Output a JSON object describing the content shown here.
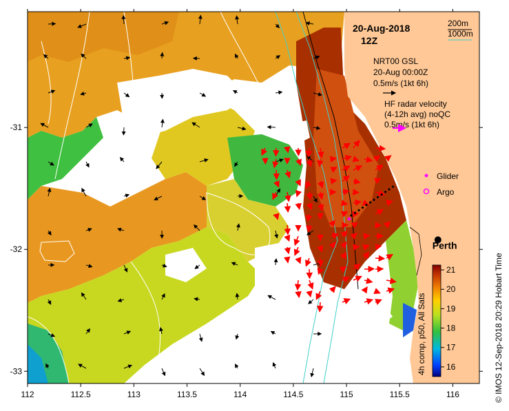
{
  "header": {
    "date": "20-Aug-2018",
    "time": "12Z"
  },
  "contour_legend": {
    "label_200": "200m",
    "label_1000": "1000m",
    "color_200": "#000000",
    "color_1000": "#3fd0c8"
  },
  "vector_legend": {
    "model_title": "NRT00 GSL",
    "model_date": "20-Aug 00:00Z",
    "model_scale": "0.5m/s (1kt 6h)",
    "radar_title": "HF radar velocity",
    "radar_note": "(4-12h avg) noQC",
    "radar_scale": "0.5m/s (1kt 6h)",
    "model_color": "#000000",
    "radar_color": "#ff00ff"
  },
  "symbols_legend": {
    "glider": "Glider",
    "argo": "Argo",
    "glider_color": "#ff00ff",
    "argo_color": "#ff00ff"
  },
  "place": {
    "name": "Perth",
    "lon": 115.86,
    "lat": -31.95
  },
  "colorbar": {
    "title": "4h comp, p50, All Sats",
    "min": 15.5,
    "max": 21.25,
    "ticks": [
      "21",
      "20",
      "19",
      "18",
      "17",
      "16"
    ],
    "tick_values": [
      21,
      20,
      19,
      18,
      17,
      16
    ]
  },
  "credit": "© IMOS 12-Sep-2018 20:29 Hobart Time",
  "axes": {
    "lon_range": [
      112,
      116.25
    ],
    "lat_range": [
      -33.1,
      -30.05
    ],
    "x_ticks": [
      "112",
      "112.5",
      "113",
      "113.5",
      "114",
      "114.5",
      "115",
      "115.5",
      "116"
    ],
    "x_tick_values": [
      112,
      112.5,
      113,
      113.5,
      114,
      114.5,
      115,
      115.5,
      116
    ],
    "y_ticks": [
      "-31",
      "-32",
      "-33"
    ],
    "y_tick_values": [
      -31,
      -32,
      -33
    ]
  },
  "colors": {
    "land": "#ffc896",
    "radar_arrow": "#ff0000",
    "model_arrow": "#000000",
    "isotherm": "#ffffff",
    "bathy_200": "#000000",
    "bathy_1000": "#3fd0c8"
  }
}
